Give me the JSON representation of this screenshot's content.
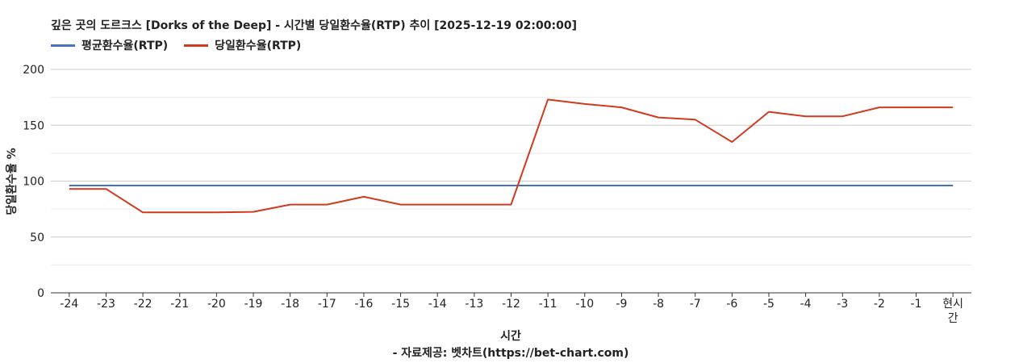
{
  "chart_data": {
    "type": "line",
    "title": "깊은 곳의 도르크스 [Dorks of the Deep] - 시간별 당일환수율(RTP) 추이 [2025-12-19 02:00:00]",
    "xlabel": "시간",
    "ylabel": "당일환수율 %",
    "source": "- 자료제공: 벳차트(https://bet-chart.com)",
    "ylim": [
      0,
      200
    ],
    "yticks": [
      0,
      50,
      100,
      150,
      200
    ],
    "grid": true,
    "legend_position": "top-left",
    "categories": [
      "-24",
      "-23",
      "-22",
      "-21",
      "-20",
      "-19",
      "-18",
      "-17",
      "-16",
      "-15",
      "-14",
      "-13",
      "-12",
      "-11",
      "-10",
      "-9",
      "-8",
      "-7",
      "-6",
      "-5",
      "-4",
      "-3",
      "-2",
      "-1",
      "현시간"
    ],
    "series": [
      {
        "name": "평균환수율(RTP)",
        "color": "#4472c4",
        "values": [
          96,
          96,
          96,
          96,
          96,
          96,
          96,
          96,
          96,
          96,
          96,
          96,
          96,
          96,
          96,
          96,
          96,
          96,
          96,
          96,
          96,
          96,
          96,
          96,
          96
        ]
      },
      {
        "name": "당일환수율(RTP)",
        "color": "#d03a1e",
        "values": [
          93,
          93,
          72,
          72,
          72,
          72.5,
          79,
          79,
          86,
          79,
          79,
          79,
          79,
          173,
          169,
          166,
          157,
          155,
          135,
          162,
          158,
          158,
          166,
          166,
          166
        ]
      }
    ]
  }
}
